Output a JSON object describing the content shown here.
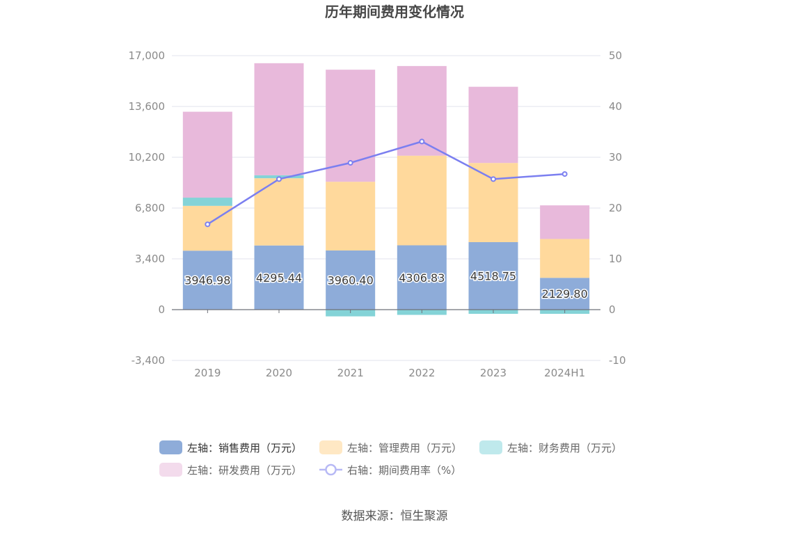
{
  "chart_data": {
    "type": "bar",
    "stacked": true,
    "title": "历年期间费用变化情况",
    "categories": [
      "2019",
      "2020",
      "2021",
      "2022",
      "2023",
      "2024H1"
    ],
    "series": [
      {
        "name": "左轴：销售费用（万元）",
        "axis": "left",
        "color": "#8eacd9",
        "legend_color": "#8eacd9",
        "values": [
          3946.98,
          4295.44,
          3960.4,
          4306.83,
          4518.75,
          2129.8
        ],
        "labels": [
          "3946.98",
          "4295.44",
          "3960.40",
          "4306.83",
          "4518.75",
          "2129.80"
        ]
      },
      {
        "name": "左轴：管理费用（万元）",
        "axis": "left",
        "color": "#ffd99c",
        "legend_color": "#ffe8c4",
        "values": [
          3000,
          4500,
          4600,
          6000,
          5300,
          2600
        ]
      },
      {
        "name": "左轴：财务费用（万元）",
        "axis": "left",
        "color": "#84d3d7",
        "legend_color": "#bfe9ec",
        "values": [
          550,
          200,
          -450,
          -350,
          -280,
          -280
        ]
      },
      {
        "name": "左轴：研发费用（万元）",
        "axis": "left",
        "color": "#e8b9db",
        "legend_color": "#f3dbec",
        "values": [
          5750,
          7500,
          7500,
          6000,
          5100,
          2250
        ]
      }
    ],
    "line_series": {
      "name": "右轴：期间费用率（%）",
      "axis": "right",
      "color": "#7b7ff0",
      "legend_color": "#b7b9f5",
      "values": [
        16.8,
        25.7,
        28.9,
        33.1,
        25.7,
        26.7
      ]
    },
    "y_left": {
      "min": -3400,
      "max": 17000,
      "ticks": [
        -3400,
        0,
        3400,
        6800,
        10200,
        13600,
        17000
      ],
      "tick_labels": [
        "-3,400",
        "0",
        "3,400",
        "6,800",
        "10,200",
        "13,600",
        "17,000"
      ]
    },
    "y_right": {
      "min": -10,
      "max": 50,
      "ticks": [
        -10,
        0,
        10,
        20,
        30,
        40,
        50
      ],
      "tick_labels": [
        "-10",
        "0",
        "10",
        "20",
        "30",
        "40",
        "50"
      ]
    },
    "grid": true,
    "legend_position": "bottom"
  },
  "footer": {
    "source": "数据来源：恒生聚源"
  }
}
